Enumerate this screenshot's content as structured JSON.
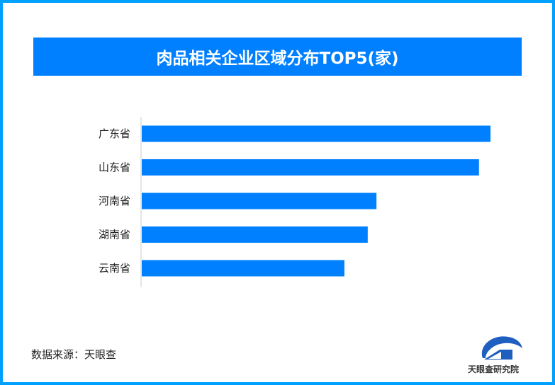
{
  "title": "肉品相关企业区域分布TOP5(家)",
  "source": "数据来源：天眼查",
  "logo_text": "天眼查研究院",
  "colors": {
    "border": "#00a0ff",
    "title_band": "#0080ff",
    "bar": "#0080ff"
  },
  "chart_data": {
    "type": "bar",
    "orientation": "horizontal",
    "title": "肉品相关企业区域分布TOP5(家)",
    "categories": [
      "广东省",
      "山东省",
      "河南省",
      "湖南省",
      "云南省"
    ],
    "values": [
      100,
      96.7,
      67.3,
      64.8,
      58.1
    ],
    "xlim": [
      0,
      100
    ],
    "grid": false,
    "axis_values_shown": false
  }
}
